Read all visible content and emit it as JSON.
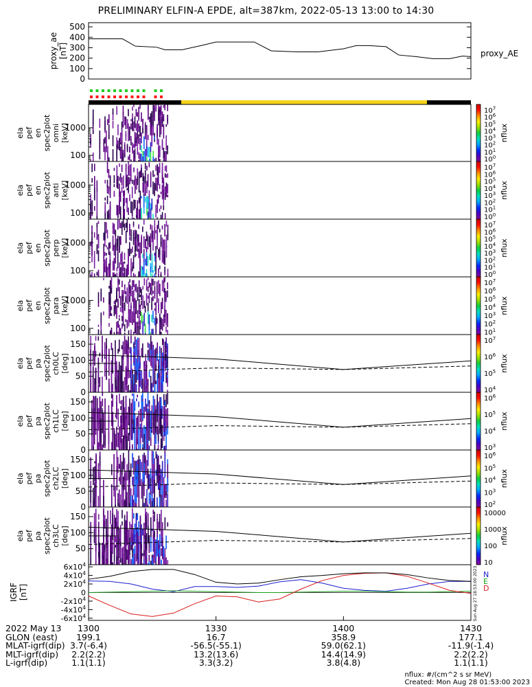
{
  "title": "PRELIMINARY ELFIN-A EPDE, alt=387km, 2022-05-13 13:00 to 14:30",
  "panels": [
    {
      "ylabel": [
        "proxy_ae",
        "[nT]"
      ],
      "yticks": [
        "500",
        "400",
        "300",
        "200",
        "100",
        "0"
      ],
      "right_label": "proxy_AE"
    },
    {
      "ylabel": [
        "ela",
        "pef",
        "en",
        "spec2plot",
        "omni",
        "[keV]"
      ],
      "yticks": [
        "1000",
        "100"
      ],
      "cbar_ticks": [
        "10^7",
        "10^6",
        "10^5",
        "10^4",
        "10^3",
        "10^2",
        "10^1",
        "10^0"
      ],
      "cbar_label": "nflux"
    },
    {
      "ylabel": [
        "ela",
        "pef",
        "en",
        "spec2plot",
        "anti",
        "[keV]"
      ],
      "yticks": [
        "1000",
        "100"
      ],
      "cbar_ticks": [
        "10^7",
        "10^6",
        "10^5",
        "10^4",
        "10^3",
        "10^2",
        "10^1",
        "10^0"
      ],
      "cbar_label": "nflux"
    },
    {
      "ylabel": [
        "ela",
        "pef",
        "en",
        "spec2plot",
        "perp",
        "[keV]"
      ],
      "yticks": [
        "1000",
        "100"
      ],
      "cbar_ticks": [
        "10^7",
        "10^6",
        "10^5",
        "10^4",
        "10^3",
        "10^2",
        "10^1",
        "10^0"
      ],
      "cbar_label": "nflux"
    },
    {
      "ylabel": [
        "ela",
        "pef",
        "en",
        "spec2plot",
        "para",
        "[keV]"
      ],
      "yticks": [
        "1000",
        "100"
      ],
      "cbar_ticks": [
        "10^7",
        "10^6",
        "10^5",
        "10^4",
        "10^3",
        "10^2",
        "10^1"
      ],
      "cbar_label": "nflux"
    },
    {
      "ylabel": [
        "ela",
        "pef",
        "pa",
        "spec2plot",
        "ch0LC",
        "[deg]"
      ],
      "yticks": [
        "150",
        "100",
        "50",
        "0"
      ],
      "cbar_ticks": [
        "10^7",
        "10^6",
        "10^5",
        "10^4"
      ],
      "cbar_label": "nflux"
    },
    {
      "ylabel": [
        "ela",
        "pef",
        "pa",
        "spec2plot",
        "ch1LC",
        "[deg]"
      ],
      "yticks": [
        "150",
        "100",
        "50",
        "0"
      ],
      "cbar_ticks": [
        "10^6",
        "10^5",
        "10^4",
        "10^3"
      ],
      "cbar_label": "nflux"
    },
    {
      "ylabel": [
        "ela",
        "pef",
        "pa",
        "spec2plot",
        "ch2LC",
        "[deg]"
      ],
      "yticks": [
        "150",
        "100",
        "50",
        "0"
      ],
      "cbar_ticks": [
        "10^6",
        "10^5",
        "10^4",
        "10^3",
        "10^2"
      ],
      "cbar_label": "nflux"
    },
    {
      "ylabel": [
        "ela",
        "pef",
        "pa",
        "spec2plot",
        "ch3LC",
        "[deg]"
      ],
      "yticks": [
        "150",
        "100",
        "50"
      ],
      "cbar_ticks": [
        "10000",
        "1000",
        "100",
        "10"
      ],
      "cbar_label": "nflux"
    },
    {
      "ylabel": [
        "IGRF",
        "[nT]"
      ],
      "yticks": [
        "6x10^4",
        "4x10^4",
        "2x10^4",
        "0",
        "-2x10^4",
        "-4x10^4",
        "-6x10^4"
      ],
      "right_labels": [
        "N",
        "E",
        "D"
      ],
      "side_text": "Sun Aug 27 18:53:00 2023"
    }
  ],
  "ephemeris": [
    {
      "label": "2022 May 13",
      "values": [
        "1300",
        "1330",
        "1400",
        "1430"
      ]
    },
    {
      "label": "GLON (east)",
      "values": [
        "199.1",
        "16.7",
        "358.9",
        "177.1"
      ]
    },
    {
      "label": "MLAT-igrf(dip)",
      "values": [
        "3.7(-6.4)",
        "-56.5(-55.1)",
        "59.0(62.1)",
        "-11.9(-1.4)"
      ]
    },
    {
      "label": "MLT-igrf(dip)",
      "values": [
        "2.2(2.2)",
        "13.2(13.6)",
        "14.4(14.9)",
        "2.2(2.2)"
      ]
    },
    {
      "label": "L-igrf(dip)",
      "values": [
        "1.1(1.1)",
        "3.3(3.2)",
        "3.8(4.8)",
        "1.1(1.1)"
      ]
    }
  ],
  "footer": {
    "units": "nflux: #/(cm^2 s sr MeV)",
    "created": "Created: Mon Aug 28 01:53:00 2023"
  },
  "colors": {
    "N": "#1a1ad0",
    "E": "#1a9e1a",
    "D": "#d81a1a",
    "total": "#000000",
    "sunlight": "#f3d21a",
    "shadow": "#000000",
    "ifm": "#ff1a1a",
    "sci": "#22cc22"
  },
  "chart_data": [
    {
      "type": "line",
      "name": "proxy_AE",
      "x_minutes_after_1300": [
        0,
        8,
        11,
        16,
        18,
        22,
        27,
        30,
        35,
        39,
        43,
        49,
        54,
        60,
        63,
        66,
        70,
        73,
        77,
        81,
        85,
        88,
        90
      ],
      "y": [
        385,
        385,
        315,
        305,
        280,
        280,
        325,
        355,
        355,
        355,
        270,
        260,
        260,
        290,
        320,
        320,
        310,
        230,
        215,
        195,
        195,
        220,
        215
      ],
      "ylabel": "proxy_ae [nT]",
      "ylim": [
        0,
        540
      ]
    },
    {
      "type": "heatmap",
      "description_panels": [
        "omni",
        "anti",
        "perp",
        "para"
      ],
      "y_axis": "energy [keV], log scale",
      "ylim": [
        60,
        7000
      ],
      "xlim_minutes": [
        0,
        90
      ],
      "active_interval_minutes": [
        0,
        6
      ]
    },
    {
      "type": "line",
      "name": "loss cone",
      "x_minutes_after_1300": [
        0,
        30,
        60,
        90
      ],
      "loss_cone_deg": [
        117,
        104,
        71,
        98
      ],
      "anti_loss_cone_deg": [
        63,
        76,
        71,
        82
      ],
      "ylim": [
        0,
        180
      ]
    },
    {
      "type": "line",
      "name": "IGRF",
      "x_minutes_after_1300": [
        0,
        5,
        10,
        15,
        20,
        25,
        30,
        35,
        40,
        45,
        50,
        55,
        60,
        65,
        70,
        75,
        80,
        85,
        90
      ],
      "series": [
        {
          "name": "N",
          "values": [
            27000,
            26000,
            20000,
            8000,
            2000,
            14000,
            14000,
            12000,
            15000,
            25000,
            30000,
            22000,
            10000,
            5000,
            3000,
            10000,
            20000,
            26000,
            26000
          ]
        },
        {
          "name": "E",
          "values": [
            0,
            1000,
            2000,
            3000,
            4000,
            3000,
            2000,
            1000,
            0,
            0,
            1000,
            2000,
            3000,
            3000,
            2000,
            1000,
            1000,
            2000,
            3000
          ]
        },
        {
          "name": "D",
          "values": [
            -8000,
            -30000,
            -50000,
            -56000,
            -48000,
            -26000,
            -8000,
            -10000,
            -22000,
            -15000,
            8000,
            28000,
            40000,
            45000,
            46000,
            38000,
            22000,
            5000,
            -2000
          ]
        },
        {
          "name": "total",
          "values": [
            31000,
            38000,
            49000,
            54000,
            54000,
            42000,
            24000,
            20000,
            22000,
            30000,
            37000,
            40000,
            44000,
            46000,
            46000,
            42000,
            34000,
            28000,
            26000
          ]
        }
      ],
      "ylim": [
        -65000,
        65000
      ]
    }
  ]
}
